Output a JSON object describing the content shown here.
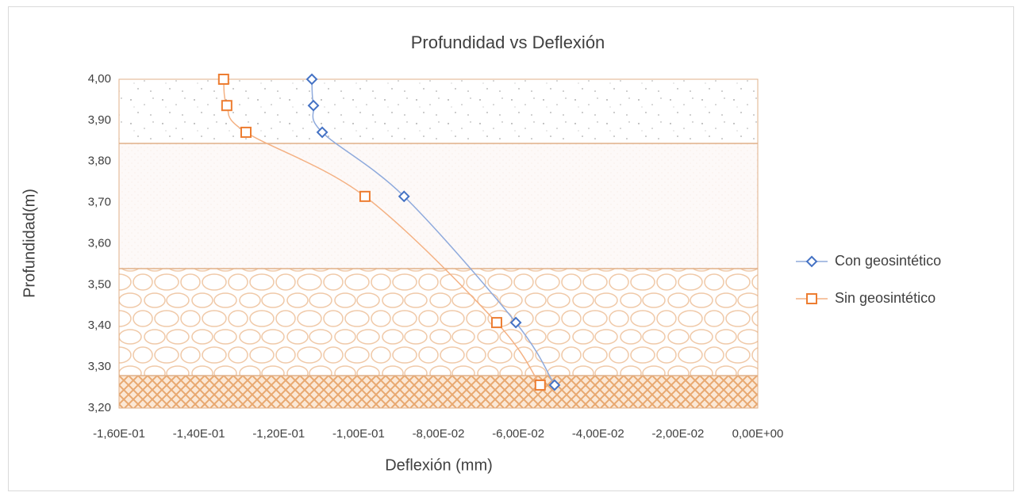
{
  "chart_data": {
    "type": "line",
    "title": "Profundidad vs Deflexión",
    "x_label": "Deflexión  (mm)",
    "y_label": "Profundidad(m)",
    "xlim": [
      -0.16,
      0
    ],
    "xticks": [
      {
        "value": -0.16,
        "label": "-1,60E-01"
      },
      {
        "value": -0.14,
        "label": "-1,40E-01"
      },
      {
        "value": -0.12,
        "label": "-1,20E-01"
      },
      {
        "value": -0.1,
        "label": "-1,00E-01"
      },
      {
        "value": -0.08,
        "label": "-8,00E-02"
      },
      {
        "value": -0.06,
        "label": "-6,00E-02"
      },
      {
        "value": -0.04,
        "label": "-4,00E-02"
      },
      {
        "value": -0.02,
        "label": "-2,00E-02"
      },
      {
        "value": 0,
        "label": "0,00E+00"
      }
    ],
    "ylim": [
      3.2,
      4.0
    ],
    "yticks": [
      {
        "value": 3.2,
        "label": "3,20"
      },
      {
        "value": 3.3,
        "label": "3,30"
      },
      {
        "value": 3.4,
        "label": "3,40"
      },
      {
        "value": 3.5,
        "label": "3,50"
      },
      {
        "value": 3.6,
        "label": "3,60"
      },
      {
        "value": 3.7,
        "label": "3,70"
      },
      {
        "value": 3.8,
        "label": "3,80"
      },
      {
        "value": 3.9,
        "label": "3,90"
      },
      {
        "value": 4.0,
        "label": "4,00"
      }
    ],
    "series": [
      {
        "name": "Con geosintético",
        "color": "#4472c4",
        "marker": "diamond",
        "line_color": "#8faadc",
        "x": [
          -0.1117,
          -0.1113,
          -0.1091,
          -0.0886,
          -0.0606,
          -0.0509
        ],
        "values": [
          4.0,
          3.936,
          3.871,
          3.715,
          3.408,
          3.256
        ]
      },
      {
        "name": "Sin geosintético",
        "color": "#ed7d31",
        "marker": "square",
        "line_color": "#f4b183",
        "x": [
          -0.1338,
          -0.133,
          -0.1282,
          -0.0984,
          -0.0654,
          -0.0545
        ],
        "values": [
          4.0,
          3.936,
          3.871,
          3.715,
          3.408,
          3.256
        ]
      }
    ]
  }
}
